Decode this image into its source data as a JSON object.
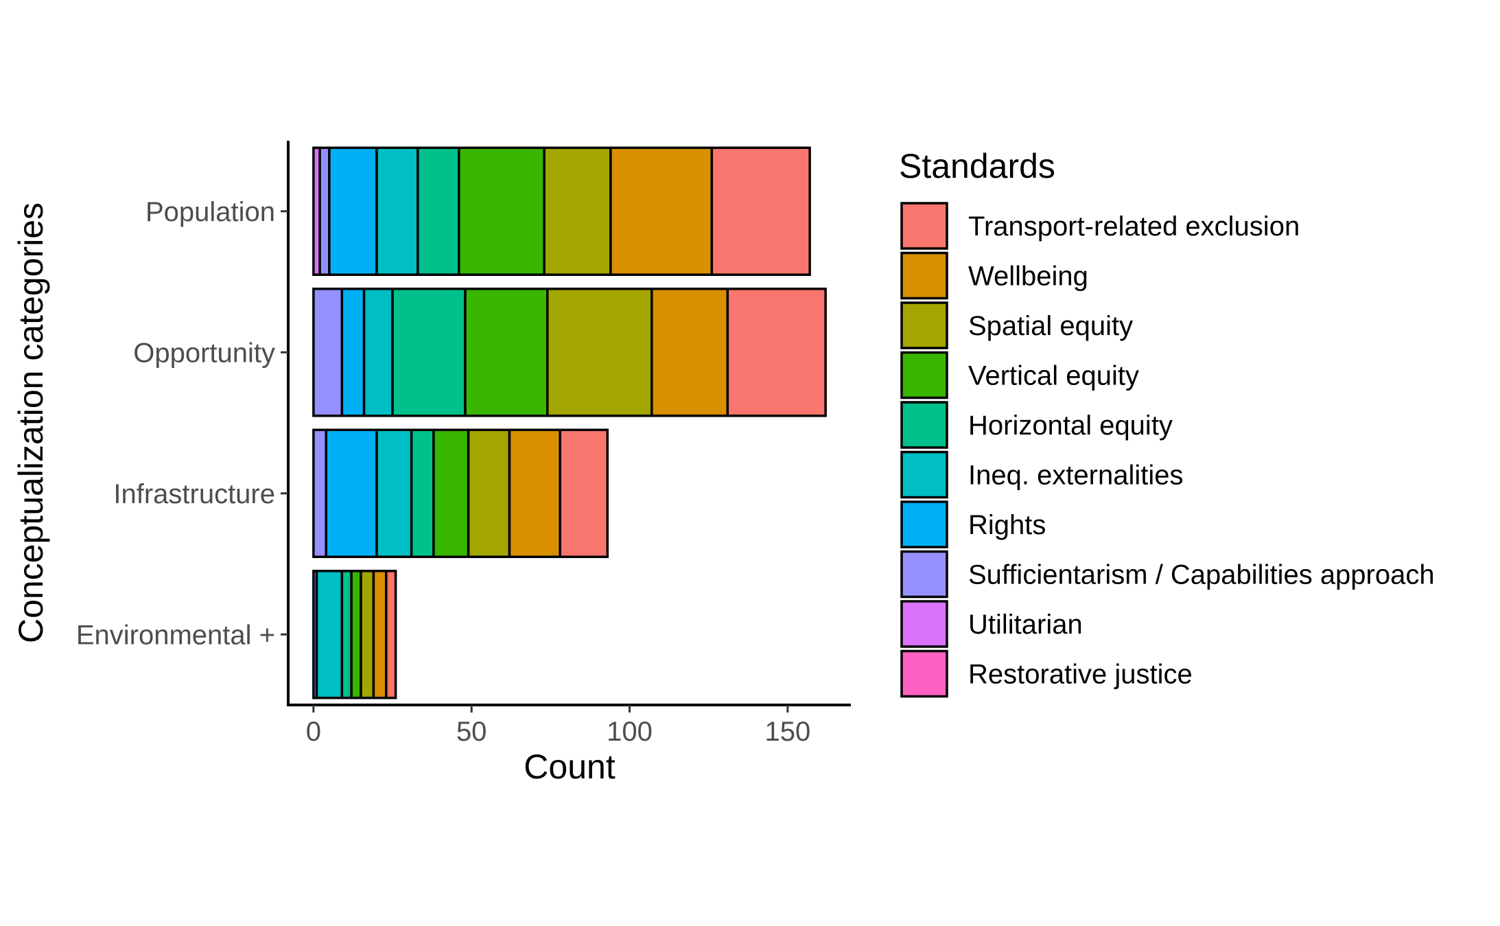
{
  "chart_data": {
    "type": "bar",
    "orientation": "horizontal",
    "stacked": true,
    "xlabel": "Count",
    "ylabel": "Conceptualization categories",
    "xlim": [
      -8,
      170
    ],
    "xticks": [
      0,
      50,
      100,
      150
    ],
    "categories": [
      "Population",
      "Opportunity",
      "Infrastructure",
      "Environmental +"
    ],
    "grid": false,
    "legend": {
      "title": "Standards",
      "position": "right"
    },
    "series": [
      {
        "name": "Restorative justice",
        "color": "#FF61C3",
        "values": [
          0,
          0,
          0,
          0
        ]
      },
      {
        "name": "Utilitarian",
        "color": "#DB72FB",
        "values": [
          2,
          0,
          0,
          0
        ]
      },
      {
        "name": "Sufficientarism / Capabilities approach",
        "color": "#9590FF",
        "values": [
          3,
          9,
          4,
          1
        ]
      },
      {
        "name": "Rights",
        "color": "#00B0F6",
        "values": [
          15,
          7,
          16,
          0
        ]
      },
      {
        "name": "Ineq. externalities",
        "color": "#00BFC4",
        "values": [
          13,
          9,
          11,
          8
        ]
      },
      {
        "name": "Horizontal equity",
        "color": "#00C08B",
        "values": [
          13,
          23,
          7,
          3
        ]
      },
      {
        "name": "Vertical equity",
        "color": "#39B600",
        "values": [
          27,
          26,
          11,
          3
        ]
      },
      {
        "name": "Spatial equity",
        "color": "#A3A500",
        "values": [
          21,
          33,
          13,
          4
        ]
      },
      {
        "name": "Wellbeing",
        "color": "#D89000",
        "values": [
          32,
          24,
          16,
          4
        ]
      },
      {
        "name": "Transport-related exclusion",
        "color": "#F8766D",
        "values": [
          31,
          31,
          15,
          3
        ]
      }
    ]
  }
}
